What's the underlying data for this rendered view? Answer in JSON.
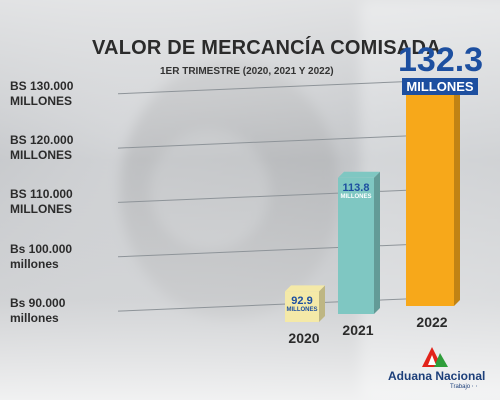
{
  "chart_data": {
    "type": "bar",
    "title": "VALOR DE MERCANCÍA COMISADA",
    "subtitle": "1ER TRIMESTRE (2020, 2021 Y 2022)",
    "categories": [
      "2020",
      "2021",
      "2022"
    ],
    "values": [
      92.9,
      113.8,
      132.3
    ],
    "value_labels": [
      "92.9",
      "113.8",
      "132.3"
    ],
    "value_unit": "MILLONES",
    "y_ticks": [
      {
        "value": 90,
        "label_line1": "Bs 90.000",
        "label_line2": "millones"
      },
      {
        "value": 100,
        "label_line1": "Bs 100.000",
        "label_line2": "millones"
      },
      {
        "value": 110,
        "label_line1": "BS 110.000",
        "label_line2": "MILLONES"
      },
      {
        "value": 120,
        "label_line1": "BS 120.000",
        "label_line2": "MILLONES"
      },
      {
        "value": 130,
        "label_line1": "BS 130.000",
        "label_line2": "MILLONES"
      }
    ],
    "ylim": [
      88,
      134
    ],
    "bar_colors": [
      "#f4e9a8",
      "#7fc7c2",
      "#f7a81a"
    ],
    "grid": true
  },
  "brand": {
    "name": "Aduana Nacional",
    "tagline": "Trabajo ⋅ ⋅",
    "colors": {
      "red": "#e2231a",
      "green": "#2e9d3a",
      "navy": "#1d3f7a"
    }
  }
}
